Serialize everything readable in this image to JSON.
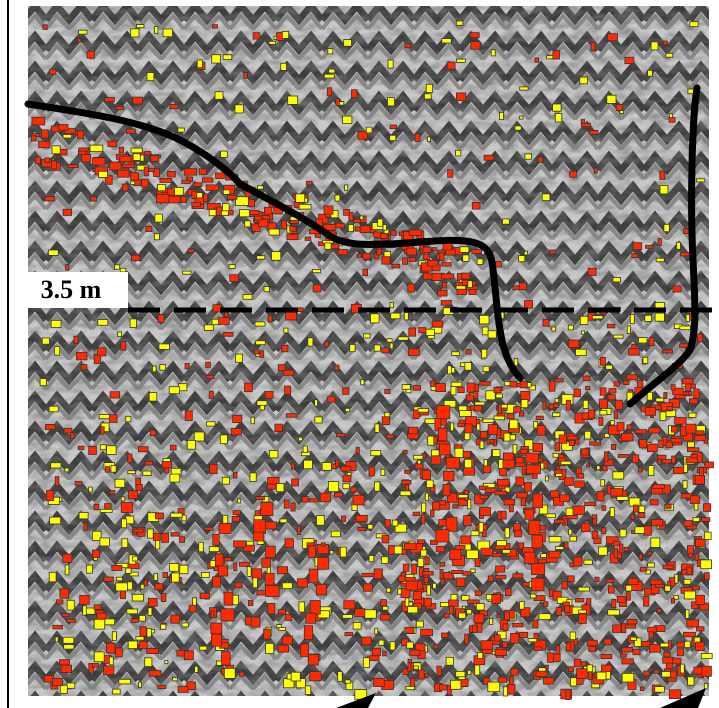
{
  "depth_marker": {
    "label": "3.5 m"
  },
  "colors": {
    "background": "#ffffff",
    "noise_dark": "#3a3a3a",
    "noise_mid": "#8c8c8c",
    "noise_light": "#d0d0d0",
    "anomaly_red": "#ff2a00",
    "anomaly_yellow": "#ffff00",
    "interpretation_line": "#000000"
  }
}
